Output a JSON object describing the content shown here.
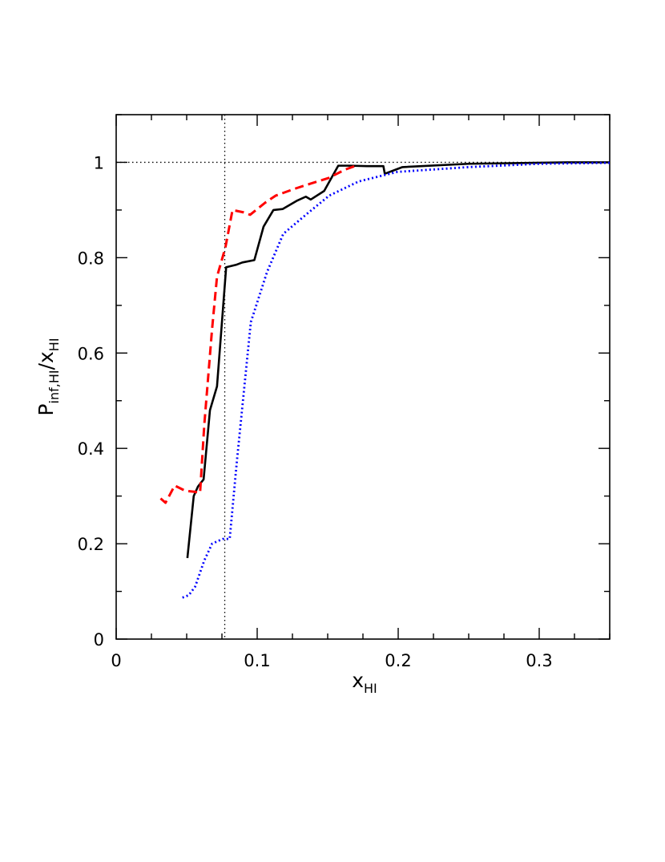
{
  "chart_data": {
    "type": "line",
    "title": "",
    "xlabel": {
      "base": "x",
      "sub": "HI"
    },
    "ylabel": {
      "base": "P",
      "sub1": "inf,HI",
      "slash": "/",
      "base2": "x",
      "sub2": "HI"
    },
    "xlim": [
      0,
      0.35
    ],
    "ylim": [
      0,
      1.1
    ],
    "x_ticks": [
      {
        "value": 0,
        "label": "0"
      },
      {
        "value": 0.1,
        "label": "0.1"
      },
      {
        "value": 0.2,
        "label": "0.2"
      },
      {
        "value": 0.3,
        "label": "0.3"
      }
    ],
    "y_ticks": [
      {
        "value": 0,
        "label": "0"
      },
      {
        "value": 0.2,
        "label": "0.2"
      },
      {
        "value": 0.4,
        "label": "0.4"
      },
      {
        "value": 0.6,
        "label": "0.6"
      },
      {
        "value": 0.8,
        "label": "0.8"
      },
      {
        "value": 1.0,
        "label": "1"
      }
    ],
    "x_minor_step": 0.025,
    "y_minor_step": 0.1,
    "reference_lines": [
      {
        "orientation": "horizontal",
        "value": 1.0,
        "style": "dotted",
        "color": "#000000"
      },
      {
        "orientation": "vertical",
        "value": 0.077,
        "style": "dotted",
        "color": "#000000"
      }
    ],
    "series": [
      {
        "style": "solid",
        "color": "#000000",
        "points": [
          [
            0.0505,
            0.17
          ],
          [
            0.055,
            0.3
          ],
          [
            0.058,
            0.32
          ],
          [
            0.062,
            0.335
          ],
          [
            0.0665,
            0.48
          ],
          [
            0.0715,
            0.53
          ],
          [
            0.078,
            0.78
          ],
          [
            0.085,
            0.785
          ],
          [
            0.0895,
            0.79
          ],
          [
            0.098,
            0.795
          ],
          [
            0.1045,
            0.865
          ],
          [
            0.1115,
            0.9
          ],
          [
            0.118,
            0.902
          ],
          [
            0.1285,
            0.92
          ],
          [
            0.1345,
            0.928
          ],
          [
            0.138,
            0.922
          ],
          [
            0.1475,
            0.94
          ],
          [
            0.1575,
            0.993
          ],
          [
            0.166,
            0.993
          ],
          [
            0.178,
            0.992
          ],
          [
            0.1895,
            0.992
          ],
          [
            0.1905,
            0.976
          ],
          [
            0.1985,
            0.985
          ],
          [
            0.203,
            0.99
          ],
          [
            0.25,
            0.997
          ],
          [
            0.32,
            1.0
          ],
          [
            0.35,
            1.0
          ]
        ]
      },
      {
        "style": "dashed",
        "color": "#ff0000",
        "points": [
          [
            0.0315,
            0.295
          ],
          [
            0.035,
            0.286
          ],
          [
            0.0415,
            0.322
          ],
          [
            0.049,
            0.311
          ],
          [
            0.0555,
            0.309
          ],
          [
            0.0595,
            0.307
          ],
          [
            0.0625,
            0.45
          ],
          [
            0.068,
            0.65
          ],
          [
            0.0715,
            0.76
          ],
          [
            0.0775,
            0.822
          ],
          [
            0.0825,
            0.9
          ],
          [
            0.0905,
            0.895
          ],
          [
            0.095,
            0.89
          ],
          [
            0.1055,
            0.915
          ],
          [
            0.113,
            0.93
          ],
          [
            0.126,
            0.944
          ],
          [
            0.1375,
            0.955
          ],
          [
            0.1505,
            0.967
          ],
          [
            0.1625,
            0.985
          ],
          [
            0.171,
            0.994
          ]
        ]
      },
      {
        "style": "dotted",
        "color": "#0000ff",
        "points": [
          [
            0.047,
            0.087
          ],
          [
            0.0515,
            0.092
          ],
          [
            0.056,
            0.11
          ],
          [
            0.0625,
            0.165
          ],
          [
            0.068,
            0.2
          ],
          [
            0.0755,
            0.21
          ],
          [
            0.0805,
            0.21
          ],
          [
            0.0855,
            0.37
          ],
          [
            0.0955,
            0.665
          ],
          [
            0.107,
            0.77
          ],
          [
            0.1185,
            0.85
          ],
          [
            0.1345,
            0.89
          ],
          [
            0.151,
            0.93
          ],
          [
            0.172,
            0.96
          ],
          [
            0.1995,
            0.98
          ],
          [
            0.25,
            0.99
          ],
          [
            0.3,
            0.997
          ],
          [
            0.35,
            0.999
          ]
        ]
      }
    ]
  }
}
